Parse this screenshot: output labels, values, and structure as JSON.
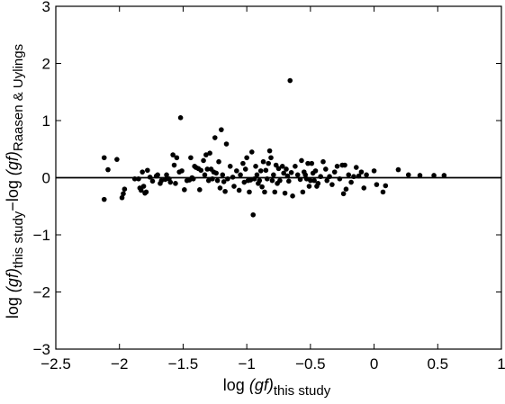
{
  "chart_data": {
    "type": "scatter",
    "title": "",
    "xlabel": {
      "prefix": "log ",
      "quantity": "(gf)",
      "subscript": "this study"
    },
    "ylabel": {
      "part1_prefix": "log ",
      "part1_quantity": "(gf)",
      "part1_subscript": "this study",
      "operator": "−log ",
      "part2_quantity": "(gf)",
      "part2_subscript": "Raasen & Uylings"
    },
    "xlim": [
      -2.5,
      1
    ],
    "ylim": [
      -3,
      3
    ],
    "xticks": [
      -2.5,
      -2,
      -1.5,
      -1,
      -0.5,
      0,
      0.5,
      1
    ],
    "xtick_labels": [
      "−2.5",
      "−2",
      "−1.5",
      "−1",
      "−0.5",
      "0",
      "0.5",
      "1"
    ],
    "yticks": [
      -3,
      -2,
      -1,
      0,
      1,
      2,
      3
    ],
    "ytick_labels": [
      "−3",
      "−2",
      "−1",
      "0",
      "1",
      "2",
      "3"
    ],
    "grid": false,
    "reference_line_y": 0,
    "colors": {
      "points": "#000000",
      "axes": "#000000",
      "reference_line": "#000000"
    },
    "series": [
      {
        "values": [
          [
            -2.12,
            0.35
          ],
          [
            -2.12,
            -0.38
          ],
          [
            -2.09,
            0.14
          ],
          [
            -2.02,
            0.32
          ],
          [
            -1.98,
            -0.35
          ],
          [
            -1.97,
            -0.28
          ],
          [
            -1.96,
            -0.2
          ],
          [
            -1.88,
            -0.02
          ],
          [
            -1.85,
            -0.02
          ],
          [
            -1.84,
            -0.18
          ],
          [
            -1.83,
            -0.22
          ],
          [
            -1.82,
            0.1
          ],
          [
            -1.81,
            -0.15
          ],
          [
            -1.8,
            -0.27
          ],
          [
            -1.79,
            -0.25
          ],
          [
            -1.78,
            0.13
          ],
          [
            -1.76,
            0.01
          ],
          [
            -1.74,
            -0.06
          ],
          [
            -1.71,
            0.03
          ],
          [
            -1.7,
            0.05
          ],
          [
            -1.68,
            -0.1
          ],
          [
            -1.67,
            -0.05
          ],
          [
            -1.64,
            -0.03
          ],
          [
            -1.63,
            0.05
          ],
          [
            -1.61,
            -0.02
          ],
          [
            -1.6,
            -0.08
          ],
          [
            -1.58,
            0.4
          ],
          [
            -1.57,
            0.22
          ],
          [
            -1.56,
            -0.1
          ],
          [
            -1.55,
            0.35
          ],
          [
            -1.53,
            0.1
          ],
          [
            -1.52,
            1.05
          ],
          [
            -1.51,
            0.12
          ],
          [
            -1.49,
            -0.21
          ],
          [
            -1.47,
            -0.05
          ],
          [
            -1.45,
            -0.04
          ],
          [
            -1.44,
            0.35
          ],
          [
            -1.43,
            0.0
          ],
          [
            -1.42,
            -0.02
          ],
          [
            -1.41,
            0.2
          ],
          [
            -1.4,
            0.18
          ],
          [
            -1.38,
            0.16
          ],
          [
            -1.37,
            -0.21
          ],
          [
            -1.36,
            0.13
          ],
          [
            -1.34,
            0.3
          ],
          [
            -1.33,
            0.05
          ],
          [
            -1.32,
            0.4
          ],
          [
            -1.31,
            0.15
          ],
          [
            -1.3,
            -0.05
          ],
          [
            -1.29,
            0.43
          ],
          [
            -1.28,
            0.15
          ],
          [
            -1.27,
            -0.02
          ],
          [
            -1.26,
            0.1
          ],
          [
            -1.25,
            0.7
          ],
          [
            -1.24,
            0.08
          ],
          [
            -1.23,
            -0.05
          ],
          [
            -1.22,
            0.28
          ],
          [
            -1.21,
            -0.18
          ],
          [
            -1.2,
            0.84
          ],
          [
            -1.19,
            0.05
          ],
          [
            -1.18,
            -0.07
          ],
          [
            -1.17,
            -0.24
          ],
          [
            -1.16,
            0.59
          ],
          [
            -1.15,
            -0.02
          ],
          [
            -1.13,
            0.2
          ],
          [
            -1.11,
            0.01
          ],
          [
            -1.1,
            -0.15
          ],
          [
            -1.08,
            0.12
          ],
          [
            -1.06,
            -0.22
          ],
          [
            -1.05,
            0.05
          ],
          [
            -1.03,
            0.25
          ],
          [
            -1.02,
            -0.08
          ],
          [
            -1.01,
            0.15
          ],
          [
            -1.0,
            0.35
          ],
          [
            -0.99,
            -0.05
          ],
          [
            -0.98,
            -0.25
          ],
          [
            -0.97,
            -0.04
          ],
          [
            -0.96,
            0.45
          ],
          [
            -0.95,
            -0.65
          ],
          [
            -0.94,
            -0.02
          ],
          [
            -0.93,
            0.2
          ],
          [
            -0.92,
            0.05
          ],
          [
            -0.91,
            -0.1
          ],
          [
            -0.9,
            -0.05
          ],
          [
            -0.89,
            0.12
          ],
          [
            -0.88,
            -0.16
          ],
          [
            -0.87,
            0.28
          ],
          [
            -0.86,
            -0.25
          ],
          [
            -0.85,
            0.13
          ],
          [
            -0.84,
            -0.02
          ],
          [
            -0.83,
            0.25
          ],
          [
            -0.82,
            0.47
          ],
          [
            -0.81,
            0.35
          ],
          [
            -0.8,
            -0.05
          ],
          [
            -0.79,
            0.05
          ],
          [
            -0.78,
            -0.25
          ],
          [
            -0.77,
            0.22
          ],
          [
            -0.76,
            -0.1
          ],
          [
            -0.75,
            0.16
          ],
          [
            -0.74,
            -0.05
          ],
          [
            -0.72,
            0.2
          ],
          [
            -0.71,
            0.08
          ],
          [
            -0.7,
            -0.27
          ],
          [
            -0.69,
            0.15
          ],
          [
            -0.68,
            0.03
          ],
          [
            -0.67,
            -0.06
          ],
          [
            -0.66,
            1.7
          ],
          [
            -0.65,
            0.09
          ],
          [
            -0.64,
            -0.32
          ],
          [
            -0.62,
            0.2
          ],
          [
            -0.6,
            0.05
          ],
          [
            -0.58,
            -0.03
          ],
          [
            -0.57,
            0.3
          ],
          [
            -0.56,
            -0.25
          ],
          [
            -0.55,
            0.1
          ],
          [
            -0.54,
            0.05
          ],
          [
            -0.53,
            -0.02
          ],
          [
            -0.52,
            0.25
          ],
          [
            -0.51,
            -0.15
          ],
          [
            -0.5,
            -0.05
          ],
          [
            -0.49,
            0.25
          ],
          [
            -0.48,
            0.08
          ],
          [
            -0.47,
            -0.05
          ],
          [
            -0.46,
            0.12
          ],
          [
            -0.45,
            -0.15
          ],
          [
            -0.44,
            -0.1
          ],
          [
            -0.42,
            0.02
          ],
          [
            -0.4,
            0.28
          ],
          [
            -0.38,
            0.15
          ],
          [
            -0.37,
            -0.05
          ],
          [
            -0.35,
            0.02
          ],
          [
            -0.33,
            -0.12
          ],
          [
            -0.31,
            0.1
          ],
          [
            -0.29,
            0.2
          ],
          [
            -0.27,
            -0.02
          ],
          [
            -0.25,
            0.22
          ],
          [
            -0.24,
            -0.28
          ],
          [
            -0.23,
            0.22
          ],
          [
            -0.22,
            -0.2
          ],
          [
            -0.2,
            0.05
          ],
          [
            -0.18,
            -0.08
          ],
          [
            -0.16,
            0.02
          ],
          [
            -0.14,
            0.18
          ],
          [
            -0.12,
            0.03
          ],
          [
            -0.1,
            0.1
          ],
          [
            -0.08,
            -0.18
          ],
          [
            -0.06,
            0.05
          ],
          [
            0.0,
            0.12
          ],
          [
            0.02,
            -0.12
          ],
          [
            0.07,
            -0.25
          ],
          [
            0.09,
            -0.14
          ],
          [
            0.19,
            0.14
          ],
          [
            0.27,
            0.05
          ],
          [
            0.36,
            0.04
          ],
          [
            0.47,
            0.04
          ],
          [
            0.55,
            0.04
          ]
        ]
      }
    ]
  }
}
